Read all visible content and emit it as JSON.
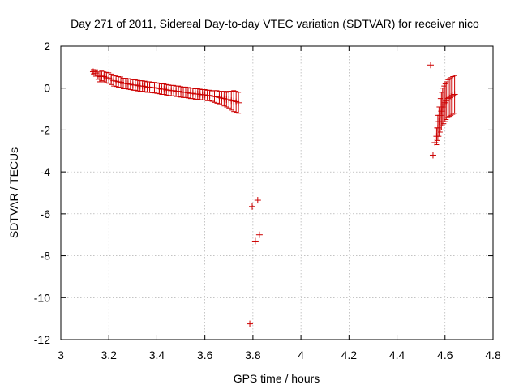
{
  "chart_data": {
    "type": "scatter",
    "title": "Day 271 of 2011, Sidereal Day-to-day VTEC variation (SDTVAR) for receiver nico",
    "xlabel": "GPS time / hours",
    "ylabel": "SDTVAR / TECUs",
    "xlim": [
      3,
      4.8
    ],
    "ylim": [
      -12,
      2
    ],
    "xticks": [
      3,
      3.2,
      3.4,
      3.6,
      3.8,
      4,
      4.2,
      4.4,
      4.6,
      4.8
    ],
    "xtick_labels": [
      "3",
      "3.2",
      "3.4",
      "3.6",
      "3.8",
      "4",
      "4.2",
      "4.4",
      "4.6",
      "4.8"
    ],
    "yticks": [
      2,
      0,
      -2,
      -4,
      -6,
      -8,
      -10,
      -12
    ],
    "ytick_labels": [
      "2",
      "0",
      "-2",
      "-4",
      "-6",
      "-8",
      "-10",
      "-12"
    ],
    "grid": true,
    "marker": "+",
    "series_color": "#cc0000",
    "series": [
      {
        "name": "SDTVAR",
        "points": [
          {
            "x": 3.135,
            "y": 0.78,
            "err": 0.1
          },
          {
            "x": 3.145,
            "y": 0.72,
            "err": 0.15
          },
          {
            "x": 3.155,
            "y": 0.62,
            "err": 0.2
          },
          {
            "x": 3.162,
            "y": 0.55,
            "err": 0.25
          },
          {
            "x": 3.17,
            "y": 0.6,
            "err": 0.25
          },
          {
            "x": 3.18,
            "y": 0.55,
            "err": 0.25
          },
          {
            "x": 3.19,
            "y": 0.5,
            "err": 0.25
          },
          {
            "x": 3.2,
            "y": 0.48,
            "err": 0.25
          },
          {
            "x": 3.21,
            "y": 0.42,
            "err": 0.25
          },
          {
            "x": 3.22,
            "y": 0.35,
            "err": 0.25
          },
          {
            "x": 3.23,
            "y": 0.33,
            "err": 0.25
          },
          {
            "x": 3.24,
            "y": 0.3,
            "err": 0.25
          },
          {
            "x": 3.25,
            "y": 0.28,
            "err": 0.25
          },
          {
            "x": 3.26,
            "y": 0.22,
            "err": 0.25
          },
          {
            "x": 3.27,
            "y": 0.22,
            "err": 0.25
          },
          {
            "x": 3.28,
            "y": 0.2,
            "err": 0.25
          },
          {
            "x": 3.29,
            "y": 0.18,
            "err": 0.25
          },
          {
            "x": 3.3,
            "y": 0.15,
            "err": 0.25
          },
          {
            "x": 3.31,
            "y": 0.15,
            "err": 0.25
          },
          {
            "x": 3.32,
            "y": 0.12,
            "err": 0.25
          },
          {
            "x": 3.33,
            "y": 0.1,
            "err": 0.25
          },
          {
            "x": 3.34,
            "y": 0.1,
            "err": 0.25
          },
          {
            "x": 3.35,
            "y": 0.08,
            "err": 0.25
          },
          {
            "x": 3.36,
            "y": 0.05,
            "err": 0.25
          },
          {
            "x": 3.37,
            "y": 0.05,
            "err": 0.25
          },
          {
            "x": 3.38,
            "y": 0.03,
            "err": 0.25
          },
          {
            "x": 3.39,
            "y": 0.02,
            "err": 0.25
          },
          {
            "x": 3.4,
            "y": 0.0,
            "err": 0.25
          },
          {
            "x": 3.41,
            "y": -0.02,
            "err": 0.25
          },
          {
            "x": 3.42,
            "y": -0.05,
            "err": 0.25
          },
          {
            "x": 3.43,
            "y": -0.05,
            "err": 0.25
          },
          {
            "x": 3.44,
            "y": -0.08,
            "err": 0.25
          },
          {
            "x": 3.45,
            "y": -0.1,
            "err": 0.25
          },
          {
            "x": 3.46,
            "y": -0.12,
            "err": 0.25
          },
          {
            "x": 3.47,
            "y": -0.12,
            "err": 0.25
          },
          {
            "x": 3.48,
            "y": -0.15,
            "err": 0.25
          },
          {
            "x": 3.49,
            "y": -0.15,
            "err": 0.25
          },
          {
            "x": 3.5,
            "y": -0.18,
            "err": 0.25
          },
          {
            "x": 3.51,
            "y": -0.2,
            "err": 0.25
          },
          {
            "x": 3.52,
            "y": -0.2,
            "err": 0.25
          },
          {
            "x": 3.53,
            "y": -0.22,
            "err": 0.25
          },
          {
            "x": 3.54,
            "y": -0.25,
            "err": 0.25
          },
          {
            "x": 3.55,
            "y": -0.25,
            "err": 0.25
          },
          {
            "x": 3.56,
            "y": -0.28,
            "err": 0.25
          },
          {
            "x": 3.57,
            "y": -0.28,
            "err": 0.25
          },
          {
            "x": 3.58,
            "y": -0.3,
            "err": 0.25
          },
          {
            "x": 3.59,
            "y": -0.32,
            "err": 0.25
          },
          {
            "x": 3.6,
            "y": -0.32,
            "err": 0.25
          },
          {
            "x": 3.61,
            "y": -0.35,
            "err": 0.25
          },
          {
            "x": 3.62,
            "y": -0.35,
            "err": 0.25
          },
          {
            "x": 3.63,
            "y": -0.38,
            "err": 0.25
          },
          {
            "x": 3.64,
            "y": -0.4,
            "err": 0.28
          },
          {
            "x": 3.65,
            "y": -0.42,
            "err": 0.3
          },
          {
            "x": 3.66,
            "y": -0.45,
            "err": 0.3
          },
          {
            "x": 3.67,
            "y": -0.48,
            "err": 0.32
          },
          {
            "x": 3.68,
            "y": -0.5,
            "err": 0.35
          },
          {
            "x": 3.69,
            "y": -0.55,
            "err": 0.35
          },
          {
            "x": 3.7,
            "y": -0.55,
            "err": 0.4
          },
          {
            "x": 3.71,
            "y": -0.6,
            "err": 0.45
          },
          {
            "x": 3.72,
            "y": -0.62,
            "err": 0.5
          },
          {
            "x": 3.73,
            "y": -0.65,
            "err": 0.5
          },
          {
            "x": 3.74,
            "y": -0.7,
            "err": 0.5
          },
          {
            "x": 3.787,
            "y": -11.25,
            "err": 0
          },
          {
            "x": 3.797,
            "y": -5.65,
            "err": 0
          },
          {
            "x": 3.81,
            "y": -7.3,
            "err": 0
          },
          {
            "x": 3.82,
            "y": -5.35,
            "err": 0
          },
          {
            "x": 3.827,
            "y": -7.0,
            "err": 0
          },
          {
            "x": 4.54,
            "y": 1.1,
            "err": 0
          },
          {
            "x": 4.55,
            "y": -3.2,
            "err": 0
          },
          {
            "x": 4.558,
            "y": -2.6,
            "err": 0
          },
          {
            "x": 4.565,
            "y": -2.3,
            "err": 0.4
          },
          {
            "x": 4.57,
            "y": -1.9,
            "err": 0.6
          },
          {
            "x": 4.575,
            "y": -1.6,
            "err": 0.7
          },
          {
            "x": 4.58,
            "y": -1.3,
            "err": 0.8
          },
          {
            "x": 4.585,
            "y": -1.1,
            "err": 0.9
          },
          {
            "x": 4.59,
            "y": -0.9,
            "err": 0.9
          },
          {
            "x": 4.595,
            "y": -0.8,
            "err": 0.9
          },
          {
            "x": 4.6,
            "y": -0.7,
            "err": 0.9
          },
          {
            "x": 4.605,
            "y": -0.6,
            "err": 0.9
          },
          {
            "x": 4.612,
            "y": -0.5,
            "err": 0.9
          },
          {
            "x": 4.618,
            "y": -0.45,
            "err": 0.9
          },
          {
            "x": 4.625,
            "y": -0.4,
            "err": 0.9
          },
          {
            "x": 4.632,
            "y": -0.35,
            "err": 0.9
          },
          {
            "x": 4.64,
            "y": -0.3,
            "err": 0.9
          }
        ]
      }
    ]
  }
}
